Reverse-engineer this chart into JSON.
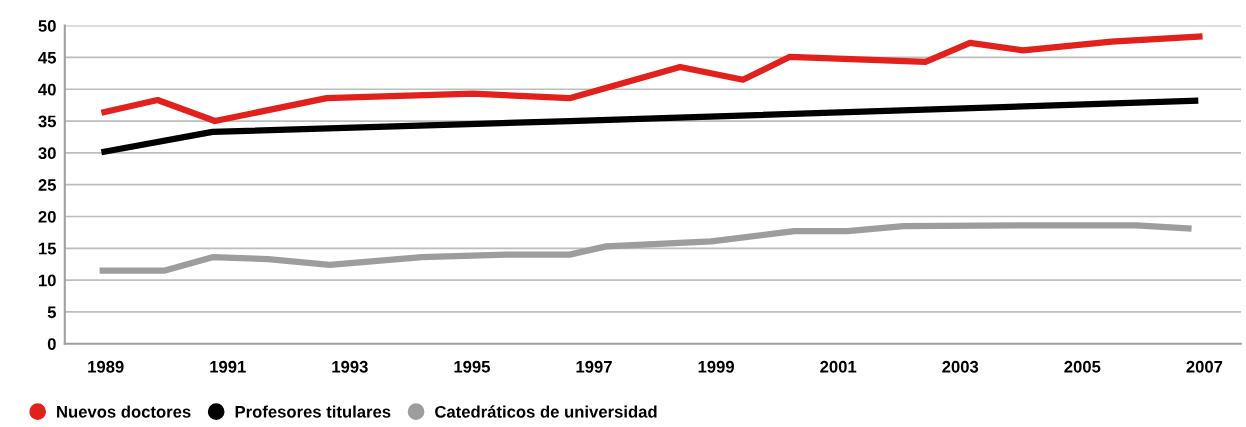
{
  "chart_data": {
    "type": "line",
    "xlim": [
      1988.33,
      2007.6
    ],
    "ylim": [
      0,
      50
    ],
    "xticks": [
      1989,
      1991,
      1993,
      1995,
      1997,
      1999,
      2001,
      2003,
      2005,
      2007
    ],
    "yticks": [
      0,
      5,
      10,
      15,
      20,
      25,
      30,
      35,
      40,
      45,
      50
    ],
    "grid": "y",
    "legend": "bottom left",
    "marker": "none",
    "line_style": "solid",
    "series": [
      {
        "name": "Nuevos doctores",
        "color": "#e3211c",
        "x": [
          1988.93,
          1989.85,
          1990.79,
          1992.62,
          1995.02,
          1996.6,
          1998.41,
          1999.44,
          2000.21,
          2002.43,
          2003.16,
          2004.03,
          2005.48,
          2006.97
        ],
        "values": [
          36.3,
          38.3,
          35.0,
          38.6,
          39.3,
          38.6,
          43.5,
          41.5,
          45.1,
          44.3,
          47.3,
          46.1,
          47.5,
          48.3
        ]
      },
      {
        "name": "Profesores titulares",
        "color": "#000000",
        "x": [
          1988.93,
          1990.75,
          1996.6,
          2006.9
        ],
        "values": [
          30.1,
          33.3,
          35.0,
          38.2
        ]
      },
      {
        "name": "Catedráticos de universidad",
        "color": "#9d9d9d",
        "x": [
          1988.9,
          1989.97,
          1990.75,
          1991.66,
          1992.67,
          1994.18,
          1995.56,
          1996.6,
          1997.2,
          1998.92,
          2000.28,
          2001.15,
          2002.07,
          2004.07,
          2005.89,
          2006.79
        ],
        "values": [
          11.5,
          11.5,
          13.6,
          13.3,
          12.4,
          13.6,
          14.0,
          14.0,
          15.3,
          16.1,
          17.7,
          17.7,
          18.5,
          18.6,
          18.6,
          18.1
        ]
      }
    ]
  }
}
